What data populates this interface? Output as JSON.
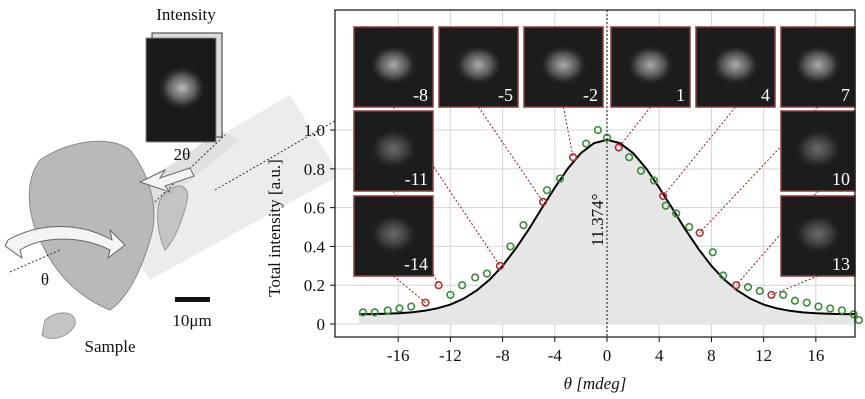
{
  "chart_data": {
    "type": "scatter",
    "xlabel": "θ [mdeg]",
    "ylabel": "Total intensity [a.u.]",
    "xlim": [
      -20.84,
      19.0
    ],
    "ylim": [
      -0.067,
      1.619
    ],
    "xticks": [
      -16,
      -12,
      -8,
      -4,
      0,
      4,
      8,
      12,
      16
    ],
    "yticks": [
      0,
      0.2,
      0.4,
      0.6,
      0.8,
      {
        "value": 1,
        "label": "1.0"
      }
    ],
    "grid": true,
    "series": [
      {
        "color": "#3a8a3a",
        "marker": "circle",
        "x": [
          -18.7,
          -17.8,
          -16.8,
          -15.9,
          -15.0,
          -12.0,
          -11.1,
          -10.1,
          -9.2,
          -7.4,
          -6.4,
          -4.6,
          -3.6,
          -1.6,
          -0.7,
          0,
          1.7,
          2.6,
          3.6,
          4.5,
          5.3,
          6.3,
          8.1,
          8.9,
          10.8,
          11.7,
          13.5,
          14.4,
          15.3,
          16.2,
          17.1,
          18.0,
          18.9,
          19.3
        ],
        "values": [
          0.06,
          0.06,
          0.07,
          0.08,
          0.09,
          0.15,
          0.2,
          0.24,
          0.26,
          0.4,
          0.51,
          0.69,
          0.75,
          0.93,
          1.0,
          0.96,
          0.86,
          0.79,
          0.74,
          0.61,
          0.57,
          0.5,
          0.37,
          0.25,
          0.19,
          0.17,
          0.15,
          0.12,
          0.11,
          0.09,
          0.08,
          0.07,
          0.05,
          0.02
        ]
      },
      {
        "color": "#b03030",
        "marker": "circle",
        "x": [
          -13.9,
          -12.9,
          -8.2,
          -4.9,
          -2.6,
          0.9,
          4.3,
          7.1,
          9.9,
          12.6
        ],
        "values": [
          0.11,
          0.2,
          0.3,
          0.63,
          0.86,
          0.91,
          0.66,
          0.47,
          0.2,
          0.15
        ]
      },
      {
        "color": "#000000",
        "marker": "line",
        "fill": "#e6e6e6",
        "x": [
          -19,
          -18,
          -17,
          -16,
          -15,
          -14,
          -13,
          -12,
          -11,
          -10,
          -9,
          -8,
          -7,
          -6,
          -5,
          -4,
          -3,
          -2,
          -1,
          0,
          1,
          2,
          3,
          4,
          5,
          6,
          7,
          8,
          9,
          10,
          11,
          12,
          13,
          14,
          15,
          16,
          17,
          18,
          19
        ],
        "values": [
          0.051,
          0.051,
          0.053,
          0.055,
          0.06,
          0.068,
          0.081,
          0.1,
          0.13,
          0.172,
          0.228,
          0.3,
          0.388,
          0.488,
          0.596,
          0.703,
          0.802,
          0.881,
          0.932,
          0.95,
          0.932,
          0.881,
          0.802,
          0.703,
          0.596,
          0.488,
          0.388,
          0.3,
          0.228,
          0.172,
          0.13,
          0.1,
          0.081,
          0.068,
          0.06,
          0.055,
          0.053,
          0.051,
          0.051
        ]
      }
    ],
    "vline": {
      "x": 0,
      "label": "11.374°"
    },
    "insets": [
      "-8",
      "-5",
      "-2",
      "1",
      "4",
      "7",
      "-11",
      "-14",
      "10",
      "13"
    ],
    "annotations": {
      "detector": "Intensity",
      "two_theta": "2θ",
      "theta": "θ",
      "scale_bar": "10μm",
      "sample": "Sample"
    }
  }
}
